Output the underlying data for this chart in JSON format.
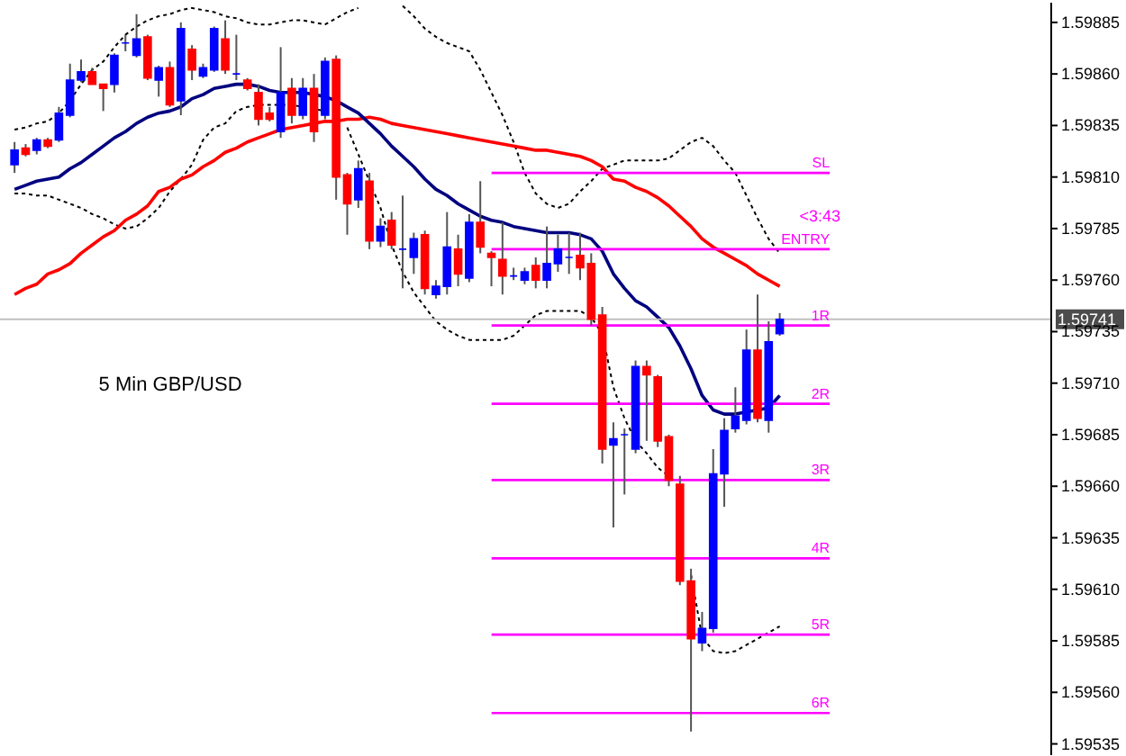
{
  "chart_data": {
    "type": "candlestick",
    "categories": [
      null,
      null,
      null,
      null,
      null,
      null,
      null,
      null,
      null,
      null,
      null,
      null,
      null,
      null,
      null,
      null,
      null,
      null,
      null,
      null,
      null,
      null,
      null,
      null,
      null,
      null,
      null,
      null,
      null,
      null,
      null,
      null,
      null,
      null,
      null,
      null,
      null,
      null,
      null,
      null,
      null,
      null,
      null,
      null,
      null,
      null,
      null,
      null,
      null,
      null,
      null,
      null,
      null,
      null,
      null,
      null,
      null,
      null,
      null,
      null,
      null,
      null,
      null,
      null,
      null,
      null,
      null,
      null,
      null,
      null
    ],
    "ohlc": [
      [
        1.59816,
        1.59827,
        1.59812,
        1.59823
      ],
      [
        1.59824,
        1.59826,
        1.5982,
        1.59821
      ],
      [
        1.59823,
        1.59829,
        1.59821,
        1.59828
      ],
      [
        1.59828,
        1.59829,
        1.59824,
        1.59825
      ],
      [
        1.59828,
        1.59844,
        1.59827,
        1.59841
      ],
      [
        1.5984,
        1.59865,
        1.59839,
        1.59857
      ],
      [
        1.59857,
        1.59867,
        1.59856,
        1.59861
      ],
      [
        1.59861,
        1.59863,
        1.59855,
        1.59855
      ],
      [
        1.59855,
        1.59855,
        1.59842,
        1.59853
      ],
      [
        1.59855,
        1.5987,
        1.59851,
        1.59869
      ],
      [
        1.59875,
        1.59879,
        1.59871,
        1.59875
      ],
      [
        1.59869,
        1.59889,
        1.59868,
        1.59877
      ],
      [
        1.59878,
        1.59879,
        1.59857,
        1.59858
      ],
      [
        1.59857,
        1.59864,
        1.59849,
        1.59863
      ],
      [
        1.59863,
        1.59866,
        1.59844,
        1.59845
      ],
      [
        1.59847,
        1.59885,
        1.5984,
        1.59882
      ],
      [
        1.59872,
        1.59874,
        1.59857,
        1.59862
      ],
      [
        1.59859,
        1.59865,
        1.59858,
        1.59863
      ],
      [
        1.59862,
        1.59883,
        1.59861,
        1.59882
      ],
      [
        1.59877,
        1.59886,
        1.5986,
        1.59862
      ],
      [
        1.5986,
        1.59879,
        1.59857,
        1.5986
      ],
      [
        1.59857,
        1.59858,
        1.59852,
        1.59853
      ],
      [
        1.59851,
        1.59855,
        1.59835,
        1.59838
      ],
      [
        1.59841,
        1.59844,
        1.59837,
        1.59838
      ],
      [
        1.59832,
        1.59873,
        1.59829,
        1.59851
      ],
      [
        1.59853,
        1.59858,
        1.59836,
        1.5984
      ],
      [
        1.5984,
        1.59858,
        1.59838,
        1.59853
      ],
      [
        1.59853,
        1.5986,
        1.59827,
        1.59832
      ],
      [
        1.5984,
        1.59868,
        1.59838,
        1.59866
      ],
      [
        1.59867,
        1.59869,
        1.59799,
        1.5981
      ],
      [
        1.59811,
        1.59812,
        1.59782,
        1.59797
      ],
      [
        1.59799,
        1.59818,
        1.59795,
        1.59814
      ],
      [
        1.59808,
        1.59812,
        1.59775,
        1.59779
      ],
      [
        1.59779,
        1.5979,
        1.59776,
        1.59786
      ],
      [
        1.59789,
        1.59793,
        1.59775,
        1.59777
      ],
      [
        1.59775,
        1.59801,
        1.59756,
        1.59775
      ],
      [
        1.59771,
        1.59783,
        1.59763,
        1.5978
      ],
      [
        1.59782,
        1.59784,
        1.59753,
        1.59756
      ],
      [
        1.59753,
        1.5976,
        1.59751,
        1.59757
      ],
      [
        1.59757,
        1.59793,
        1.59753,
        1.59776
      ],
      [
        1.59775,
        1.59782,
        1.59757,
        1.59763
      ],
      [
        1.59761,
        1.59792,
        1.59759,
        1.59788
      ],
      [
        1.59788,
        1.59808,
        1.59773,
        1.59776
      ],
      [
        1.59773,
        1.59774,
        1.59757,
        1.59771
      ],
      [
        1.5977,
        1.59788,
        1.59753,
        1.59762
      ],
      [
        1.59762,
        1.59766,
        1.5976,
        1.59762
      ],
      [
        1.5976,
        1.59766,
        1.59758,
        1.59764
      ],
      [
        1.59767,
        1.59771,
        1.59756,
        1.5976
      ],
      [
        1.5976,
        1.59786,
        1.59756,
        1.59768
      ],
      [
        1.59768,
        1.59782,
        1.59764,
        1.59775
      ],
      [
        1.59771,
        1.59783,
        1.59763,
        1.59771
      ],
      [
        1.59772,
        1.59783,
        1.5976,
        1.59766
      ],
      [
        1.59768,
        1.59773,
        1.59738,
        1.59741
      ],
      [
        1.59743,
        1.59747,
        1.59671,
        1.59678
      ],
      [
        1.5968,
        1.59691,
        1.5964,
        1.59683
      ],
      [
        1.59685,
        1.59688,
        1.59656,
        1.59685
      ],
      [
        1.59678,
        1.59721,
        1.59676,
        1.59718
      ],
      [
        1.59718,
        1.59721,
        1.59682,
        1.59714
      ],
      [
        1.59713,
        1.59714,
        1.59679,
        1.59682
      ],
      [
        1.59684,
        1.59685,
        1.5966,
        1.59663
      ],
      [
        1.59661,
        1.59665,
        1.59612,
        1.59614
      ],
      [
        1.59614,
        1.5962,
        1.59541,
        1.59586
      ],
      [
        1.59584,
        1.59599,
        1.5958,
        1.59591
      ],
      [
        1.59591,
        1.59678,
        1.59589,
        1.59666
      ],
      [
        1.59666,
        1.59693,
        1.5965,
        1.59687
      ],
      [
        1.59688,
        1.59708,
        1.59686,
        1.59694
      ],
      [
        1.59692,
        1.59736,
        1.5969,
        1.59726
      ],
      [
        1.59726,
        1.59753,
        1.59691,
        1.59693
      ],
      [
        1.59692,
        1.5974,
        1.59686,
        1.5973
      ],
      [
        1.59734,
        1.59744,
        1.59733,
        1.59741
      ]
    ],
    "colors": [
      "#0000ff",
      "#ff0000",
      "#0000ff",
      "#ff0000",
      "#0000ff",
      "#0000ff",
      "#0000ff",
      "#ff0000",
      "#ff0000",
      "#0000ff",
      "#0000ff",
      "#0000ff",
      "#ff0000",
      "#0000ff",
      "#ff0000",
      "#0000ff",
      "#ff0000",
      "#0000ff",
      "#0000ff",
      "#ff0000",
      "#0000ff",
      "#ff0000",
      "#ff0000",
      "#ff0000",
      "#0000ff",
      "#ff0000",
      "#0000ff",
      "#ff0000",
      "#0000ff",
      "#ff0000",
      "#ff0000",
      "#0000ff",
      "#ff0000",
      "#0000ff",
      "#ff0000",
      "#0000ff",
      "#0000ff",
      "#ff0000",
      "#0000ff",
      "#0000ff",
      "#ff0000",
      "#0000ff",
      "#ff0000",
      "#ff0000",
      "#ff0000",
      "#0000ff",
      "#0000ff",
      "#ff0000",
      "#0000ff",
      "#0000ff",
      "#0000ff",
      "#ff0000",
      "#ff0000",
      "#ff0000",
      "#0000ff",
      "#0000ff",
      "#0000ff",
      "#ff0000",
      "#ff0000",
      "#ff0000",
      "#ff0000",
      "#ff0000",
      "#0000ff",
      "#0000ff",
      "#0000ff",
      "#0000ff",
      "#0000ff",
      "#ff0000",
      "#0000ff",
      "#0000ff"
    ],
    "series": [
      {
        "type": "line",
        "color": "#000000",
        "line_style": "dotted",
        "values": [
          1.59833,
          1.59834,
          1.59836,
          1.59837,
          1.59841,
          1.59847,
          1.59855,
          1.59862,
          1.59866,
          1.59873,
          1.59879,
          1.59883,
          1.59886,
          1.59888,
          1.59889,
          1.59891,
          1.59892,
          1.59891,
          1.5989,
          1.59888,
          1.59887,
          1.59885,
          1.59884,
          1.59884,
          1.59885,
          1.59886,
          1.59886,
          1.59885,
          1.59884,
          1.59887,
          1.5989,
          1.59892,
          null,
          null,
          null,
          1.59893,
          1.59888,
          1.59882,
          1.59878,
          1.59875,
          1.59873,
          1.59871,
          1.59862,
          1.59851,
          1.5984,
          1.59827,
          1.59812,
          1.59802,
          1.59797,
          1.59795,
          1.59797,
          1.59803,
          1.59808,
          1.59814,
          1.59816,
          1.59818,
          1.59818,
          1.59818,
          1.59818,
          1.59819,
          1.59823,
          1.59827,
          1.59829,
          1.59825,
          1.59818,
          1.59812,
          1.59801,
          1.5979,
          1.5978,
          1.59773
        ]
      },
      {
        "type": "line",
        "color": "#000000",
        "line_style": "dotted",
        "values": [
          1.59802,
          1.59802,
          1.59801,
          1.59801,
          1.59799,
          1.59797,
          1.59795,
          1.59792,
          1.5979,
          1.59787,
          1.59785,
          1.59786,
          1.5979,
          1.59795,
          1.59803,
          1.59809,
          1.59816,
          1.59828,
          1.59834,
          1.59836,
          1.59842,
          1.59844,
          1.59845,
          1.59845,
          1.59845,
          1.59845,
          1.59844,
          1.59843,
          1.59842,
          null,
          1.59834,
          1.59821,
          1.59808,
          1.59795,
          1.59777,
          1.59764,
          1.59754,
          1.59747,
          1.5974,
          1.59736,
          1.59733,
          1.59731,
          1.59731,
          1.59731,
          1.59731,
          1.59733,
          1.59738,
          1.59743,
          1.59745,
          1.59745,
          1.59745,
          1.59745,
          1.59742,
          1.59734,
          1.59708,
          1.59693,
          1.59682,
          1.59676,
          1.59669,
          1.59665,
          null,
          1.59617,
          1.59587,
          1.5958,
          1.59579,
          1.5958,
          1.59583,
          1.59586,
          1.59589,
          1.59592
        ]
      },
      {
        "type": "line",
        "color": "#ff0000",
        "line_style": "solid",
        "values": [
          1.59753,
          1.59756,
          1.59758,
          1.59763,
          1.59765,
          1.59768,
          1.59773,
          1.59777,
          1.59781,
          1.59784,
          1.59789,
          1.59792,
          1.59796,
          1.59803,
          1.59805,
          1.59809,
          1.59811,
          1.59815,
          1.59818,
          1.59822,
          1.59824,
          1.59827,
          1.59829,
          1.59831,
          1.59833,
          1.59834,
          1.59835,
          1.59836,
          1.59837,
          1.59837,
          1.59838,
          1.59838,
          1.59839,
          1.59838,
          1.59836,
          1.59835,
          1.59834,
          1.59833,
          1.59832,
          1.59831,
          1.5983,
          1.59829,
          1.59828,
          1.59827,
          1.59826,
          1.59825,
          1.59824,
          1.59823,
          1.59823,
          1.59822,
          1.59821,
          1.5982,
          1.59818,
          1.59815,
          1.59809,
          1.59808,
          1.59805,
          1.59803,
          1.598,
          1.59796,
          1.59791,
          1.59786,
          1.5978,
          1.59776,
          1.59773,
          1.5977,
          1.59767,
          1.59763,
          1.5976,
          1.59757
        ]
      },
      {
        "type": "line",
        "color": "#000080",
        "line_style": "solid",
        "values": [
          1.59804,
          1.59806,
          1.59808,
          1.59809,
          1.5981,
          1.59814,
          1.59817,
          1.59821,
          1.59825,
          1.59829,
          1.59832,
          1.59836,
          1.59839,
          1.59841,
          1.59842,
          1.59844,
          1.59848,
          1.5985,
          1.59853,
          1.59854,
          1.59855,
          1.59855,
          1.59854,
          1.59852,
          1.59851,
          1.59851,
          1.59851,
          1.5985,
          1.59849,
          1.59847,
          1.59844,
          1.59841,
          1.59836,
          1.59831,
          1.59825,
          1.5982,
          1.59815,
          1.59809,
          1.59804,
          1.59801,
          1.59797,
          1.59794,
          1.59791,
          1.59789,
          1.59788,
          1.59786,
          1.59785,
          1.59784,
          1.59783,
          1.59783,
          1.59783,
          1.59782,
          1.5978,
          1.59774,
          1.59763,
          1.59756,
          1.5975,
          1.59747,
          1.59742,
          1.59737,
          1.59728,
          1.59717,
          1.59704,
          1.59697,
          1.59695,
          1.59695,
          1.59696,
          1.59697,
          1.59698,
          1.59704
        ]
      }
    ],
    "ref_lines": [
      {
        "axis": "y",
        "value": 1.59741,
        "label": "1.59741",
        "color": "#c0c0c0"
      },
      {
        "axis": "y",
        "value": 1.59812,
        "label": "SL",
        "color": "#ff00ff"
      },
      {
        "axis": "y",
        "value": 1.59775,
        "label": "ENTRY",
        "color": "#ff00ff"
      },
      {
        "axis": "y",
        "value": 1.59738,
        "label": "1R",
        "color": "#ff00ff"
      },
      {
        "axis": "y",
        "value": 1.597,
        "label": "2R",
        "color": "#ff00ff"
      },
      {
        "axis": "y",
        "value": 1.59663,
        "label": "3R",
        "color": "#ff00ff"
      },
      {
        "axis": "y",
        "value": 1.59625,
        "label": "4R",
        "color": "#ff00ff"
      },
      {
        "axis": "y",
        "value": 1.59588,
        "label": "5R",
        "color": "#ff00ff"
      },
      {
        "axis": "y",
        "value": 1.5955,
        "label": "6R",
        "color": "#ff00ff"
      }
    ],
    "annotations": [
      "5 Min GBP/USD",
      "<3:43"
    ],
    "ylim": [
      1.5953,
      1.59895
    ],
    "yticks": [
      {
        "value": 1.59535,
        "label": "1.59535"
      },
      {
        "value": 1.5956,
        "label": "1.59560"
      },
      {
        "value": 1.59585,
        "label": "1.59585"
      },
      {
        "value": 1.5961,
        "label": "1.59610"
      },
      {
        "value": 1.59635,
        "label": "1.59635"
      },
      {
        "value": 1.5966,
        "label": "1.59660"
      },
      {
        "value": 1.59685,
        "label": "1.59685"
      },
      {
        "value": 1.5971,
        "label": "1.59710"
      },
      {
        "value": 1.59735,
        "label": "1.59735"
      },
      {
        "value": 1.5976,
        "label": "1.59760"
      },
      {
        "value": 1.59785,
        "label": "1.59785"
      },
      {
        "value": 1.5981,
        "label": "1.59810"
      },
      {
        "value": 1.59835,
        "label": "1.59835"
      },
      {
        "value": 1.5986,
        "label": "1.59860"
      },
      {
        "value": 1.59885,
        "label": "1.59885"
      }
    ],
    "tick_labels": "y",
    "grid": false
  }
}
